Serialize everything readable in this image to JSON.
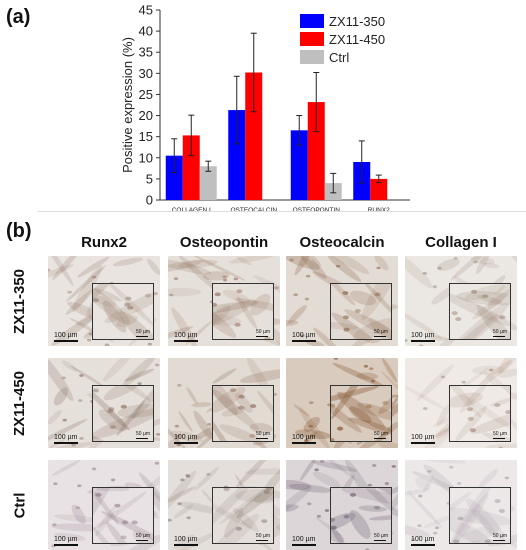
{
  "panel_a_label": "(a)",
  "panel_b_label": "(b)",
  "chart_data": {
    "type": "bar",
    "title": "",
    "xlabel": "",
    "ylabel": "Positive expression (%)",
    "ylim": [
      0,
      45
    ],
    "yticks": [
      0,
      5,
      10,
      15,
      20,
      25,
      30,
      35,
      40,
      45
    ],
    "categories": [
      "COLLAGEN I",
      "OSTEOCALCIN",
      "OSTEOPONTIN",
      "RUNX2"
    ],
    "series": [
      {
        "name": "ZX11-350",
        "color": "#0000ff",
        "values": [
          10.5,
          21.3,
          16.5,
          9.0
        ],
        "errors": [
          4.0,
          8.0,
          3.5,
          5.0
        ]
      },
      {
        "name": "ZX11-450",
        "color": "#ff0000",
        "values": [
          15.3,
          30.2,
          23.2,
          5.0
        ],
        "errors": [
          4.8,
          9.3,
          7.0,
          0.9
        ]
      },
      {
        "name": "Ctrl",
        "color": "#bfbfbf",
        "values": [
          8.0,
          null,
          4.0,
          null
        ],
        "errors": [
          1.2,
          null,
          2.3,
          null
        ]
      }
    ],
    "legend_position": "top-right",
    "grid": false
  },
  "micrograph": {
    "columns": [
      "Runx2",
      "Osteopontin",
      "Osteocalcin",
      "Collagen I"
    ],
    "rows": [
      "ZX11-350",
      "ZX11-450",
      "Ctrl"
    ],
    "main_scale_bar": "100 µm",
    "inset_scale_bar": "50 µm",
    "cells": [
      [
        {
          "bg": "#e9e4e0",
          "stain": "#8a6e5a",
          "intensity": 0.45
        },
        {
          "bg": "#e6e0da",
          "stain": "#8c6a55",
          "intensity": 0.5
        },
        {
          "bg": "#e3dcd5",
          "stain": "#8a6347",
          "intensity": 0.6
        },
        {
          "bg": "#ebe7e3",
          "stain": "#8d7563",
          "intensity": 0.35
        }
      ],
      [
        {
          "bg": "#e6e0db",
          "stain": "#7e6554",
          "intensity": 0.55
        },
        {
          "bg": "#e2dbd4",
          "stain": "#866450",
          "intensity": 0.6
        },
        {
          "bg": "#d9cbbd",
          "stain": "#8a5e3b",
          "intensity": 0.85
        },
        {
          "bg": "#efeae6",
          "stain": "#8c6a55",
          "intensity": 0.25
        }
      ],
      [
        {
          "bg": "#e8e2e4",
          "stain": "#8a7080",
          "intensity": 0.45
        },
        {
          "bg": "#e5dfdc",
          "stain": "#807060",
          "intensity": 0.45
        },
        {
          "bg": "#dcd6d8",
          "stain": "#6e6070",
          "intensity": 0.65
        },
        {
          "bg": "#ece8e8",
          "stain": "#8e8090",
          "intensity": 0.3
        }
      ]
    ]
  }
}
